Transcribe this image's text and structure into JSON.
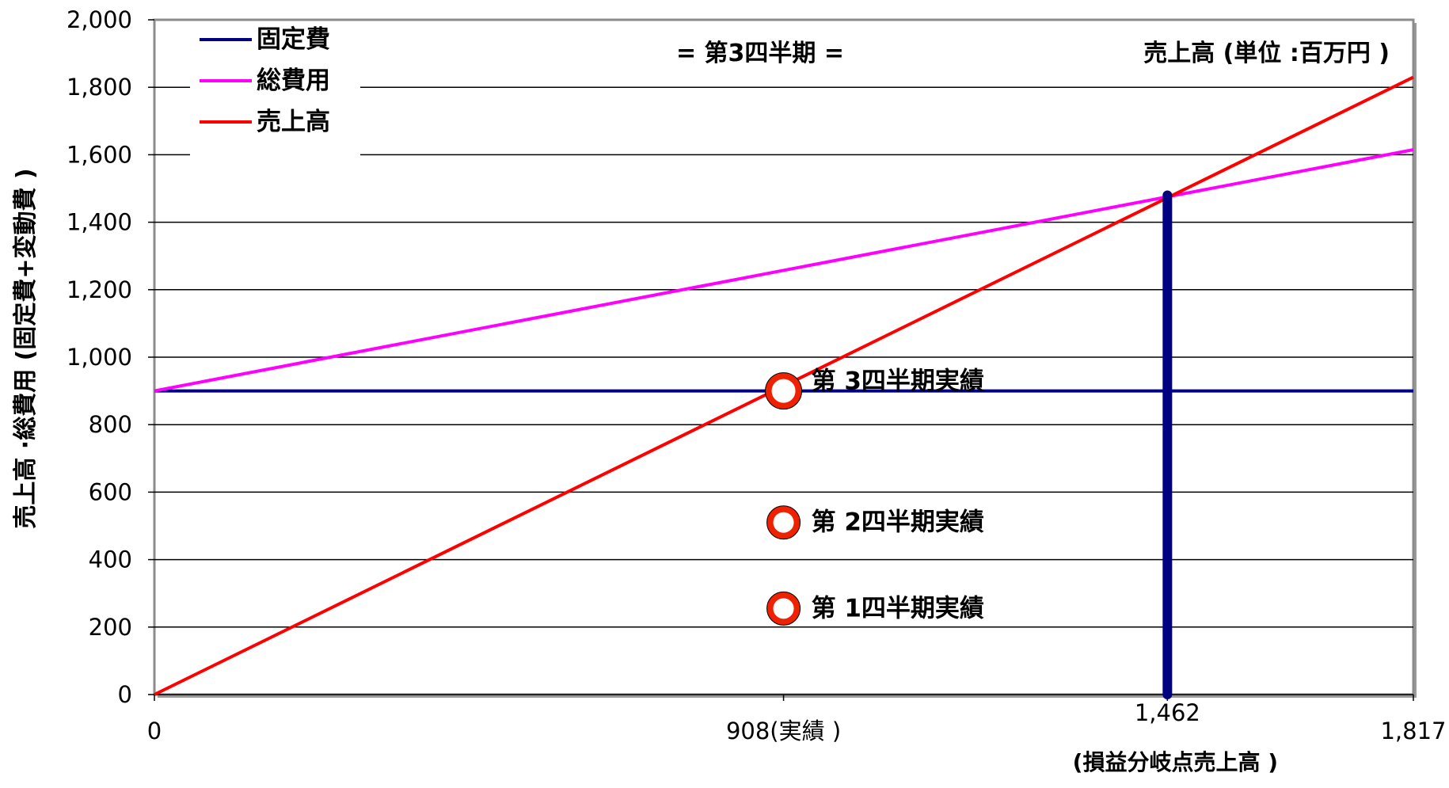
{
  "chart_data": {
    "type": "line",
    "title": "= 第3四半期 =",
    "unit_note": "売上高 (単位 :百万円 )",
    "ylabel": "売上高 ·総費用 (固定費+変動費 )",
    "ylim": [
      0,
      2000
    ],
    "yticks": [
      0,
      200,
      400,
      600,
      800,
      1000,
      1200,
      1400,
      1600,
      1800,
      2000
    ],
    "ytick_labels": [
      "0",
      "200",
      "400",
      "600",
      "800",
      "1,000",
      "1,200",
      "1,400",
      "1,600",
      "1,800",
      "2,000"
    ],
    "xlim": [
      0,
      1817
    ],
    "xticks": [
      {
        "value": 0,
        "label": "0"
      },
      {
        "value": 908,
        "label": "908(実績 )"
      },
      {
        "value": 1462,
        "label": "1,462",
        "sublabel": "(損益分岐点売上高 )"
      },
      {
        "value": 1817,
        "label": "1,817"
      }
    ],
    "grid": true,
    "legend_position": "top-left",
    "series": [
      {
        "name": "固定費",
        "color": "#000080",
        "x": [
          0,
          1817
        ],
        "y": [
          900,
          900
        ]
      },
      {
        "name": "総費用",
        "color": "#ff00ff",
        "x": [
          0,
          1817
        ],
        "y": [
          900,
          1615
        ]
      },
      {
        "name": "売上高",
        "color": "#ff0000",
        "x": [
          0,
          1817
        ],
        "y": [
          0,
          1830
        ]
      }
    ],
    "breakeven_line": {
      "x": 1462,
      "y": 1480,
      "color": "#000080"
    },
    "markers": [
      {
        "x": 908,
        "y": 900,
        "label": "第 3四半期実績"
      },
      {
        "x": 908,
        "y": 510,
        "label": "第 2四半期実績"
      },
      {
        "x": 908,
        "y": 255,
        "label": "第 1四半期実績"
      }
    ]
  }
}
